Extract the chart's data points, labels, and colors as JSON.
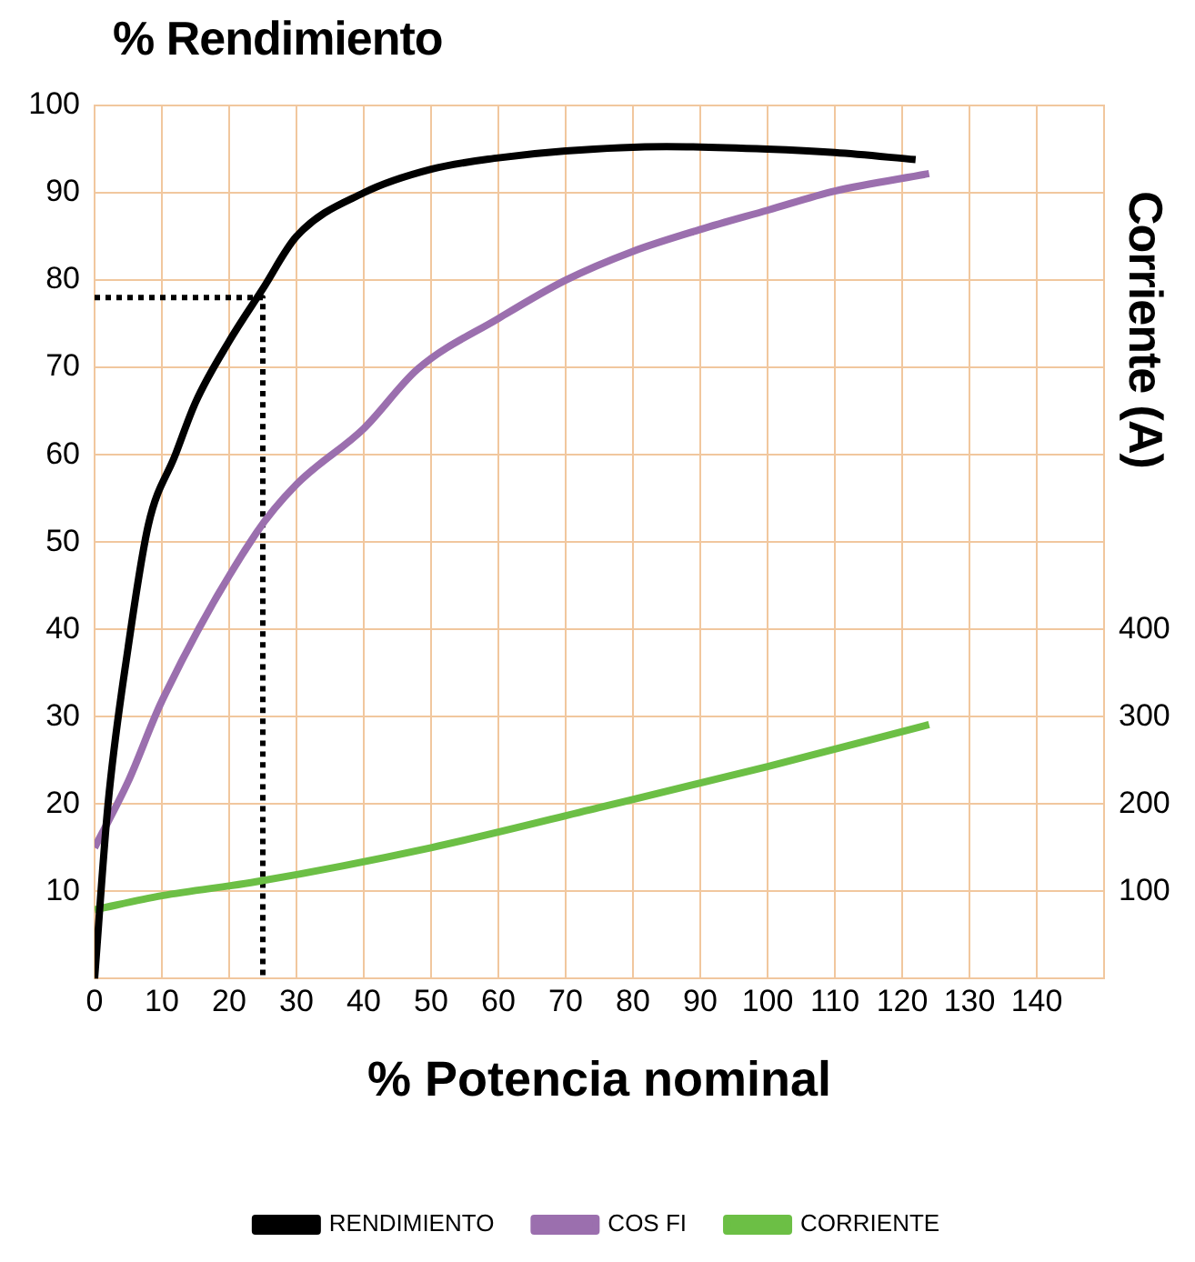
{
  "chart_data": {
    "type": "line",
    "ylabel": "% Rendimiento",
    "xlabel": "% Potencia nominal",
    "y2label": "Corriente (A)",
    "xlim": [
      0,
      150
    ],
    "xticks": [
      0,
      10,
      20,
      30,
      40,
      50,
      60,
      70,
      80,
      90,
      100,
      110,
      120,
      130,
      140
    ],
    "ylim": [
      0,
      100
    ],
    "yticks": [
      10,
      20,
      30,
      40,
      50,
      60,
      70,
      80,
      90,
      100
    ],
    "y2lim": [
      0,
      1000
    ],
    "y2ticks": [
      100,
      200,
      300,
      400
    ],
    "grid": true,
    "legend": "bottom",
    "marker": "none",
    "line_style": "solid",
    "series": [
      {
        "name": "RENDIMIENTO",
        "color": "#000000",
        "x": [
          0,
          2,
          5,
          8,
          12,
          15,
          20,
          25,
          30,
          40,
          50,
          60,
          70,
          85,
          100,
          110,
          122
        ],
        "values": [
          0,
          20,
          38,
          52,
          60,
          66,
          73,
          79,
          85,
          90,
          92.7,
          94,
          94.8,
          95.3,
          95,
          94.6,
          93.8
        ]
      },
      {
        "name": "COS FI",
        "color": "#9b6fae",
        "x": [
          0,
          5,
          10,
          24,
          30,
          40,
          48,
          60,
          70,
          80,
          90,
          100,
          110,
          124
        ],
        "values": [
          15,
          22.6,
          31.8,
          51,
          56.6,
          63,
          69.8,
          75.6,
          80,
          83.3,
          85.8,
          88,
          90.2,
          92.2
        ]
      },
      {
        "name": "CORRIENTE",
        "color": "#6cbf45",
        "axis": "y2",
        "x": [
          0,
          10,
          24,
          50,
          75,
          100,
          124
        ],
        "values": [
          79,
          95,
          111,
          150,
          196,
          243,
          291
        ]
      },
      {
        "color": "#000000",
        "line_style": "dotted",
        "x": [
          0,
          25,
          25
        ],
        "values": [
          78,
          78,
          0
        ]
      }
    ]
  }
}
